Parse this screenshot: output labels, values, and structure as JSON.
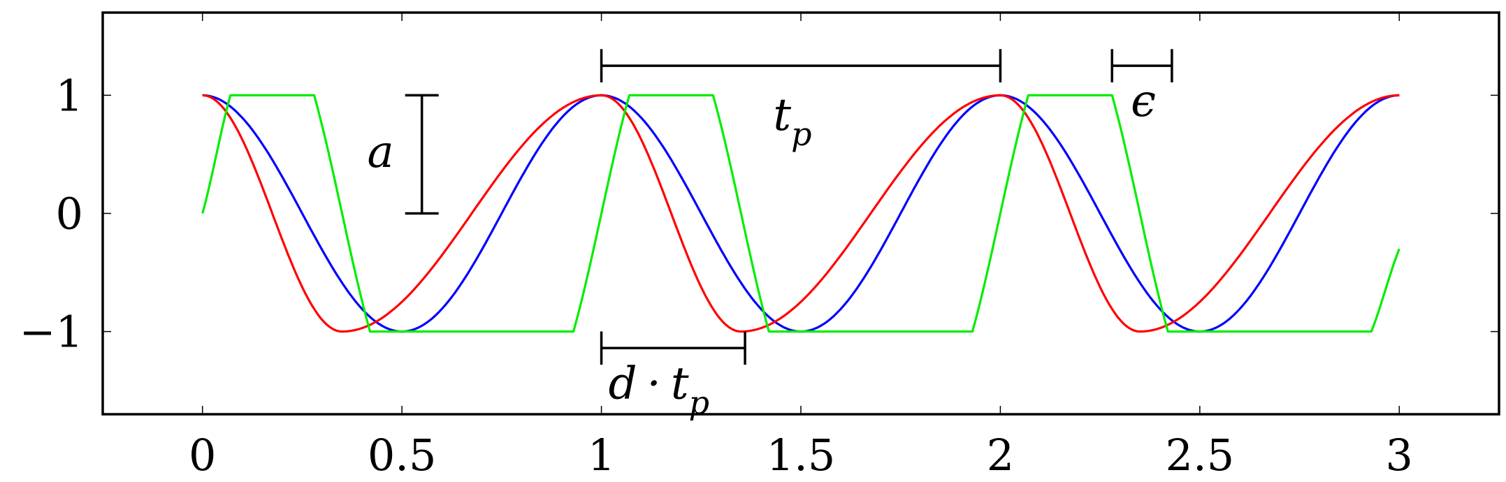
{
  "chart_data": {
    "type": "line",
    "title": "",
    "xlabel": "",
    "ylabel": "",
    "xlim": [
      -0.25,
      3.25
    ],
    "ylim": [
      -1.7,
      1.7
    ],
    "xticks": [
      0,
      0.5,
      1,
      1.5,
      2,
      2.5,
      3
    ],
    "xtick_labels": [
      "0",
      "0.5",
      "1",
      "1.5",
      "2",
      "2.5",
      "3"
    ],
    "yticks": [
      -1,
      0,
      1
    ],
    "ytick_labels": [
      "−1",
      "0",
      "1"
    ],
    "grid": false,
    "legend": "none",
    "series": [
      {
        "color": "#0000ff",
        "x": [
          0,
          0.25,
          0.5,
          0.75,
          1,
          1.25,
          1.5,
          1.75,
          2,
          2.25,
          2.5,
          2.75,
          3
        ],
        "y": [
          1,
          0,
          -1,
          0,
          1,
          0,
          -1,
          0,
          1,
          0,
          -1,
          0,
          1
        ]
      },
      {
        "color": "#ff0000",
        "x": [
          0,
          0.175,
          0.35,
          0.675,
          1,
          1.175,
          1.35,
          1.675,
          2,
          2.175,
          2.35,
          2.675,
          3
        ],
        "y": [
          1,
          0,
          -1,
          0,
          1,
          0,
          -1,
          0,
          1,
          0,
          -1,
          0,
          1
        ]
      },
      {
        "color": "#00ee00",
        "x": [
          0,
          0.07,
          0.28,
          0.42,
          0.93,
          1.07,
          1.28,
          1.42,
          1.93,
          2.07,
          2.28,
          2.42,
          2.93,
          3
        ],
        "y": [
          0,
          1,
          1,
          -1,
          -1,
          1,
          1,
          -1,
          -1,
          1,
          1,
          -1,
          -1,
          -0.3
        ]
      }
    ],
    "annotations": {
      "amplitude": {
        "label": "a",
        "x": 0.55,
        "y": [
          0,
          1
        ]
      },
      "period": {
        "label": "t",
        "subscript": "p",
        "x": [
          1,
          2
        ],
        "y": 1.25
      },
      "epsilon": {
        "label": "ϵ",
        "x": [
          2.28,
          2.43
        ],
        "y": 1.25
      },
      "duty": {
        "label_d": "d",
        "operator": "·",
        "label_t": "t",
        "subscript": "p",
        "x": [
          1,
          1.36
        ],
        "y": -1.14
      }
    }
  }
}
